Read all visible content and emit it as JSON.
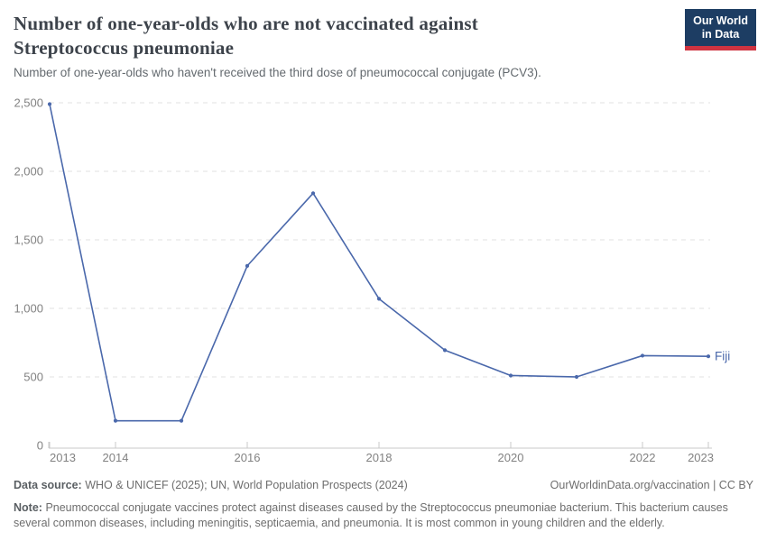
{
  "header": {
    "title_line1": "Number of one-year-olds who are not vaccinated against",
    "title_line2": "Streptococcus pneumoniae",
    "subtitle": "Number of one-year-olds who haven't received the third dose of pneumococcal conjugate (PCV3)."
  },
  "logo": {
    "line1": "Our World",
    "line2": "in Data",
    "bg_color": "#1d3d63",
    "stripe_color": "#cf3340"
  },
  "chart_data": {
    "type": "line",
    "title": "Number of one-year-olds who are not vaccinated against Streptococcus pneumoniae",
    "xlabel": "",
    "ylabel": "",
    "x": [
      2013,
      2014,
      2015,
      2016,
      2017,
      2018,
      2019,
      2020,
      2021,
      2022,
      2023
    ],
    "series": [
      {
        "name": "Fiji",
        "values": [
          2490,
          180,
          180,
          1310,
          1840,
          1070,
          695,
          510,
          500,
          655,
          650
        ]
      }
    ],
    "ylim": [
      0,
      2500
    ],
    "grid": true,
    "legend_position": "end-of-line",
    "yticks": [
      {
        "value": 0,
        "label": "0"
      },
      {
        "value": 500,
        "label": "500"
      },
      {
        "value": 1000,
        "label": "1,000"
      },
      {
        "value": 1500,
        "label": "1,500"
      },
      {
        "value": 2000,
        "label": "2,000"
      },
      {
        "value": 2500,
        "label": "2,500"
      }
    ],
    "xticks": [
      {
        "value": 2013,
        "label": "2013",
        "align": "start"
      },
      {
        "value": 2014,
        "label": "2014",
        "align": "middle"
      },
      {
        "value": 2016,
        "label": "2016",
        "align": "middle"
      },
      {
        "value": 2018,
        "label": "2018",
        "align": "middle"
      },
      {
        "value": 2020,
        "label": "2020",
        "align": "middle"
      },
      {
        "value": 2022,
        "label": "2022",
        "align": "middle"
      },
      {
        "value": 2023,
        "label": "2023",
        "align": "end"
      }
    ],
    "colors": {
      "line": "#4a68ab",
      "grid": "#e1e1e1",
      "axis": "#c9c9c9",
      "tick_label": "#828282"
    }
  },
  "footer": {
    "datasource_label": "Data source:",
    "datasource_text": "WHO & UNICEF (2025); UN, World Population Prospects (2024)",
    "link": "OurWorldinData.org/vaccination",
    "separator": "|",
    "license": "CC BY",
    "note_label": "Note:",
    "note_text": "Pneumococcal conjugate vaccines protect against diseases caused by the Streptococcus pneumoniae bacterium. This bacterium causes several common diseases, including meningitis, septicaemia, and pneumonia. It is most common in young children and the elderly."
  }
}
